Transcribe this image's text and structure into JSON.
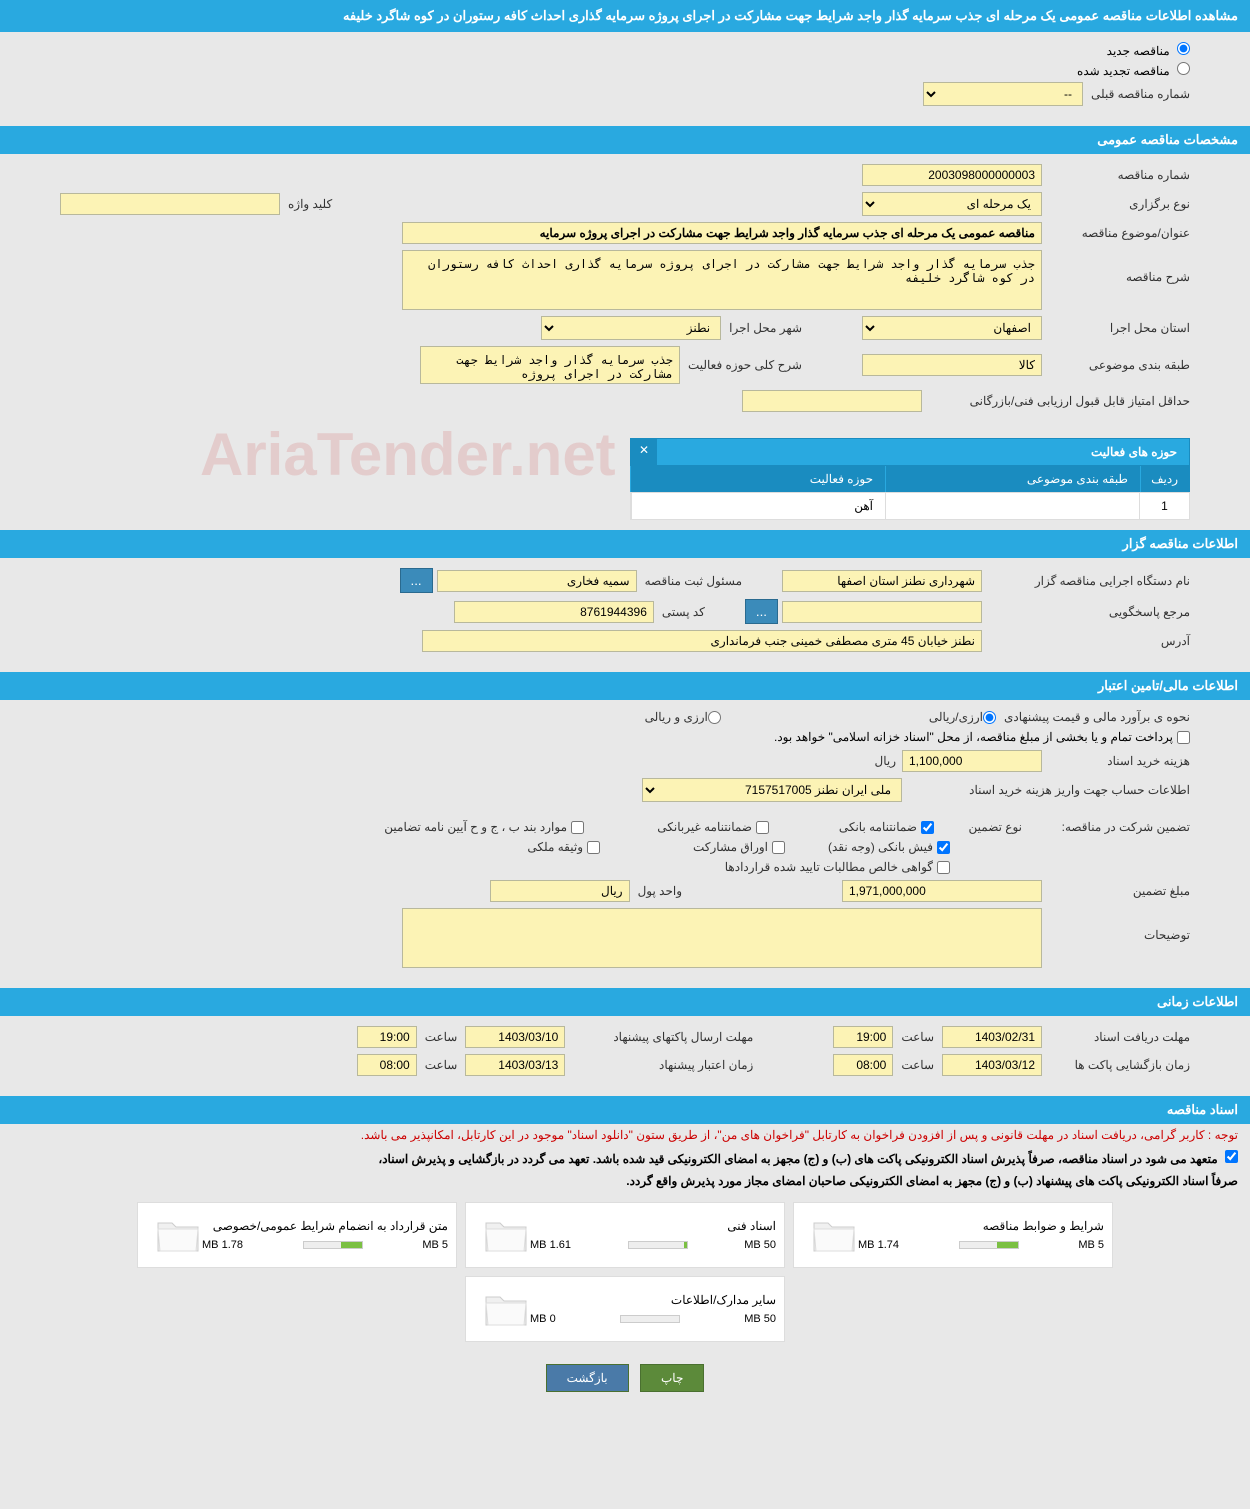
{
  "page_title": "مشاهده اطلاعات مناقصه عمومی یک مرحله ای جذب سرمایه گذار واجد شرایط جهت مشارکت در اجرای پروژه سرمایه گذاری احداث کافه رستوران در کوه شاگرد خلیفه",
  "radio_new": "مناقصه جدید",
  "radio_renewed": "مناقصه تجدید شده",
  "prev_tender_label": "شماره مناقصه قبلی",
  "sections": {
    "general": "مشخصات مناقصه عمومی",
    "organizer": "اطلاعات مناقصه گزار",
    "financial": "اطلاعات مالی/تامین اعتبار",
    "timing": "اطلاعات زمانی",
    "docs": "اسناد مناقصه"
  },
  "general": {
    "tender_no_label": "شماره مناقصه",
    "tender_no": "2003098000000003",
    "type_label": "نوع برگزاری",
    "type": "یک مرحله ای",
    "keyword_label": "کلید واژه",
    "keyword": "",
    "subject_label": "عنوان/موضوع مناقصه",
    "subject": "مناقصه عمومی یک مرحله ای جذب سرمایه گذار واجد شرایط جهت مشارکت در اجرای پروژه سرمایه",
    "desc_label": "شرح مناقصه",
    "desc": "جذب سرمایه گذار واجد شرایط جهت مشارکت در اجرای پروژه سرمایه گذاری احداث کافه رستوران در کوه شاگرد خلیفه",
    "province_label": "استان محل اجرا",
    "province": "اصفهان",
    "city_label": "شهر محل اجرا",
    "city": "نطنز",
    "category_label": "طبقه بندی موضوعی",
    "category": "کالا",
    "activity_desc_label": "شرح کلی حوزه فعالیت",
    "activity_desc": "جذب سرمایه گذار واجد شرایط جهت مشارکت در اجرای پروژه",
    "min_score_label": "حداقل امتیاز قابل قبول ارزیابی فنی/بازرگانی",
    "min_score": ""
  },
  "activity_table": {
    "title": "حوزه های فعالیت",
    "col_row": "ردیف",
    "col_category": "طبقه بندی موضوعی",
    "col_activity": "حوزه فعالیت",
    "row_num": "1",
    "row_activity": "آهن"
  },
  "organizer": {
    "name_label": "نام دستگاه اجرایی مناقصه گزار",
    "name": "شهرداری نطنز استان اصفها",
    "registrar_label": "مسئول ثبت مناقصه",
    "registrar": "سمیه فخاری",
    "contact_label": "مرجع پاسخگویی",
    "contact": "",
    "postal_label": "کد پستی",
    "postal": "8761944396",
    "address_label": "آدرس",
    "address": "نطنز خیابان 45 متری مصطفی خمینی جنب فرمانداری"
  },
  "financial": {
    "method_label": "نحوه ی برآورد مالی و قیمت پیشنهادی",
    "method_rial": "ارزی/ریالی",
    "method_arz": "ارزی و ریالی",
    "payment_note": "پرداخت تمام و یا بخشی از مبلغ مناقصه، از محل \"اسناد خزانه اسلامی\" خواهد بود.",
    "cost_label": "هزینه خرید اسناد",
    "cost": "1,100,000",
    "cost_unit": "ریال",
    "account_label": "اطلاعات حساب جهت واریز هزینه خرید اسناد",
    "account": "ملی ایران نطنز 7157517005",
    "guarantee_title": "تضمین شرکت در مناقصه:",
    "guarantee_type_label": "نوع تضمین",
    "g_bank": "ضمانتنامه بانکی",
    "g_nonbank": "ضمانتنامه غیربانکی",
    "g_clause": "موارد بند ب ، ج و ح آیین نامه تضامین",
    "g_fish": "فیش بانکی (وجه نقد)",
    "g_shares": "اوراق مشارکت",
    "g_property": "وثیقه ملکی",
    "g_contracts": "گواهی خالص مطالبات تایید شده قراردادها",
    "amount_label": "مبلغ تضمین",
    "amount": "1,971,000,000",
    "unit_label": "واحد پول",
    "unit": "ریال",
    "notes_label": "توضیحات",
    "notes": ""
  },
  "timing": {
    "receive_label": "مهلت دریافت اسناد",
    "receive_date": "1403/02/31",
    "receive_time": "19:00",
    "send_label": "مهلت ارسال پاکتهای پیشنهاد",
    "send_date": "1403/03/10",
    "send_time": "19:00",
    "open_label": "زمان بازگشایی پاکت ها",
    "open_date": "1403/03/12",
    "open_time": "08:00",
    "validity_label": "زمان اعتبار پیشنهاد",
    "validity_date": "1403/03/13",
    "validity_time": "08:00",
    "time_label": "ساعت"
  },
  "docs": {
    "notice_red": "توجه : کاربر گرامی، دریافت اسناد در مهلت قانونی و پس از افزودن فراخوان به کارتابل \"فراخوان های من\"، از طریق ستون \"دانلود اسناد\" موجود در این کارتابل، امکانپذیر می باشد.",
    "notice_black1": "متعهد می شود در اسناد مناقصه، صرفاً پذیرش اسناد الکترونیکی پاکت های (ب) و (ج) مجهز به امضای الکترونیکی قید شده باشد. تعهد می گردد در بازگشایی و پذیرش اسناد،",
    "notice_black2": "صرفاً اسناد الکترونیکی پاکت های پیشنهاد (ب) و (ج) مجهز به امضای الکترونیکی صاحبان امضای مجاز مورد پذیرش واقع گردد.",
    "files": [
      {
        "title": "شرایط و ضوابط مناقصه",
        "size": "1.74 MB",
        "max": "5 MB",
        "pct": 35
      },
      {
        "title": "اسناد فنی",
        "size": "1.61 MB",
        "max": "50 MB",
        "pct": 4
      },
      {
        "title": "متن قرارداد به انضمام شرایط عمومی/خصوصی",
        "size": "1.78 MB",
        "max": "5 MB",
        "pct": 36
      },
      {
        "title": "سایر مدارک/اطلاعات",
        "size": "0 MB",
        "max": "50 MB",
        "pct": 0
      }
    ]
  },
  "buttons": {
    "print": "چاپ",
    "back": "بازگشت",
    "dots": "..."
  },
  "colors": {
    "header_bg": "#29a9e0",
    "yellow_bg": "#fcf3b5",
    "btn_blue": "#3b8bba",
    "btn_green": "#5c8a3a"
  },
  "watermark": "AriaTender.net"
}
